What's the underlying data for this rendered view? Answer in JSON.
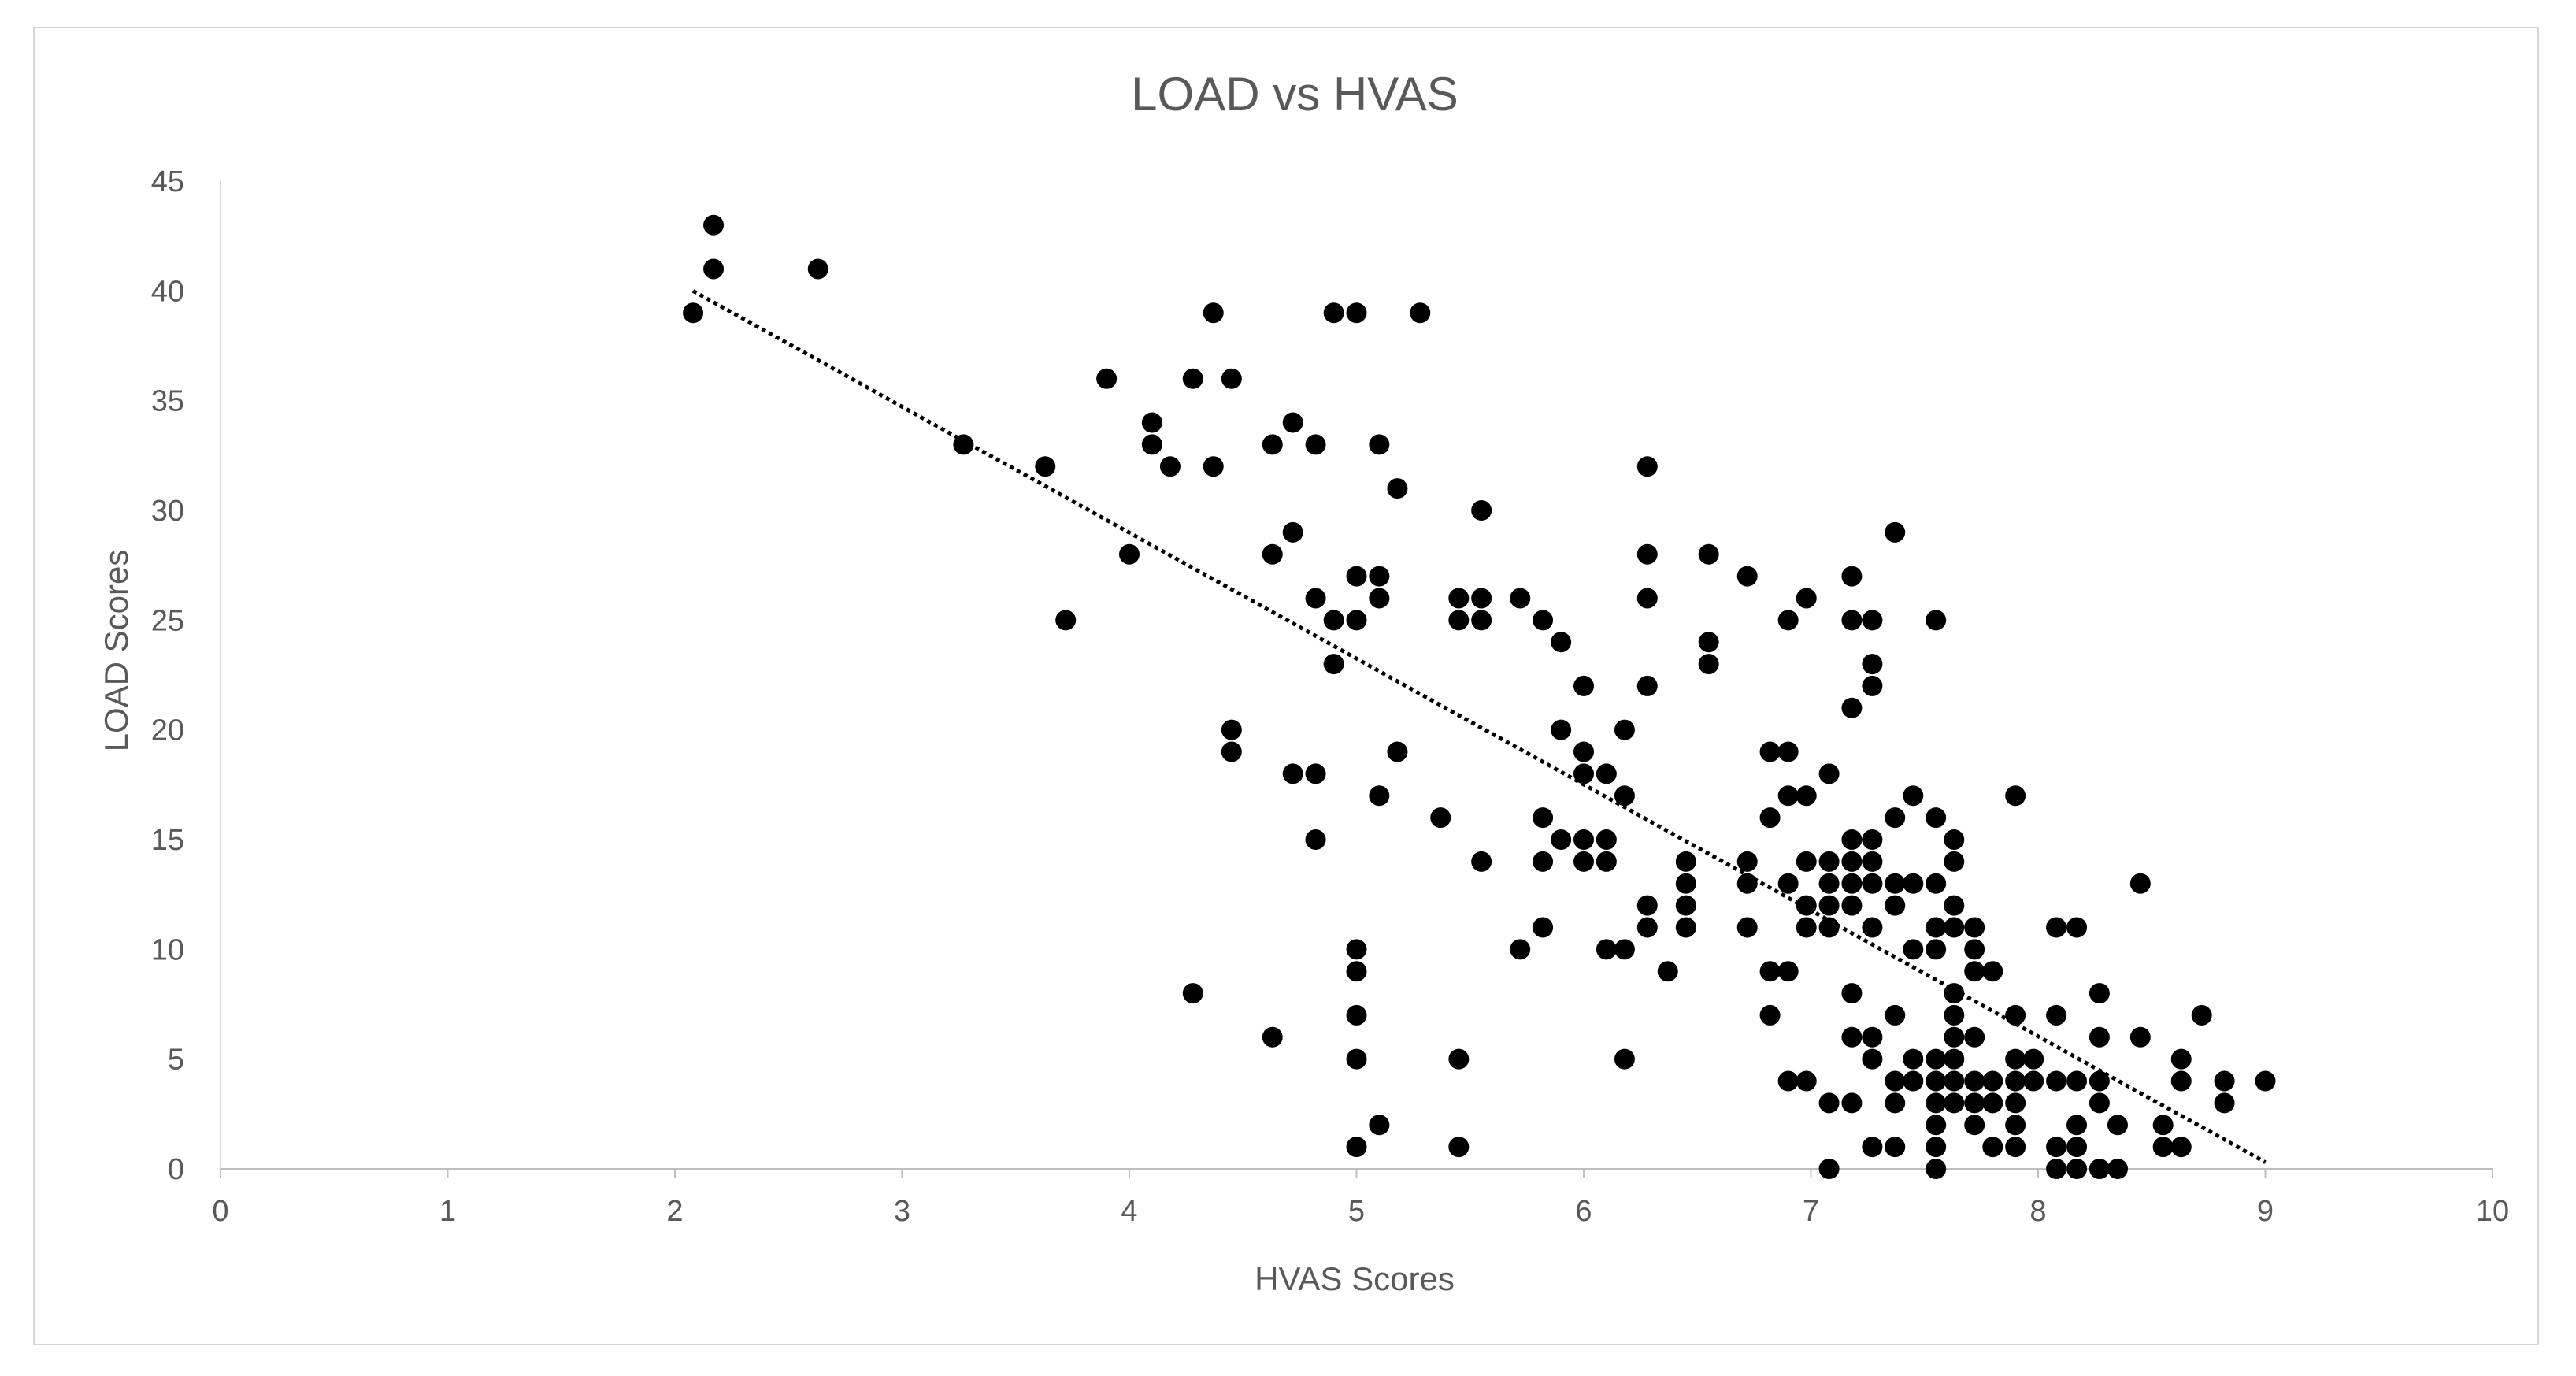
{
  "chart_data": {
    "type": "scatter",
    "title": "LOAD vs HVAS",
    "xlabel": "HVAS Scores",
    "ylabel": "LOAD Scores",
    "xlim": [
      0,
      10
    ],
    "ylim": [
      0,
      45
    ],
    "xticks": [
      0,
      1,
      2,
      3,
      4,
      5,
      6,
      7,
      8,
      9,
      10
    ],
    "yticks": [
      0,
      5,
      10,
      15,
      20,
      25,
      30,
      35,
      40,
      45
    ],
    "grid": false,
    "legend": "none",
    "marker_color": "#000000",
    "trendline": {
      "style": "dotted",
      "color": "#000000",
      "x": [
        2.08,
        9.0
      ],
      "y": [
        40.0,
        0.3
      ]
    },
    "points": [
      [
        2.08,
        39
      ],
      [
        2.17,
        43
      ],
      [
        2.17,
        41
      ],
      [
        2.63,
        41
      ],
      [
        3.27,
        33
      ],
      [
        3.63,
        32
      ],
      [
        3.72,
        25
      ],
      [
        3.9,
        36
      ],
      [
        4.0,
        28
      ],
      [
        4.1,
        34
      ],
      [
        4.1,
        33
      ],
      [
        4.18,
        32
      ],
      [
        4.28,
        36
      ],
      [
        4.37,
        39
      ],
      [
        4.37,
        32
      ],
      [
        4.45,
        36
      ],
      [
        4.45,
        20
      ],
      [
        4.45,
        19
      ],
      [
        4.28,
        8
      ],
      [
        4.63,
        33
      ],
      [
        4.63,
        28
      ],
      [
        4.63,
        6
      ],
      [
        4.72,
        34
      ],
      [
        4.72,
        29
      ],
      [
        4.72,
        18
      ],
      [
        4.82,
        33
      ],
      [
        4.82,
        26
      ],
      [
        4.82,
        18
      ],
      [
        4.82,
        15
      ],
      [
        4.9,
        39
      ],
      [
        4.9,
        25
      ],
      [
        4.9,
        23
      ],
      [
        5.0,
        39
      ],
      [
        5.0,
        27
      ],
      [
        5.0,
        25
      ],
      [
        5.0,
        10
      ],
      [
        5.0,
        9
      ],
      [
        5.0,
        7
      ],
      [
        5.0,
        5
      ],
      [
        5.0,
        1
      ],
      [
        5.1,
        33
      ],
      [
        5.1,
        27
      ],
      [
        5.1,
        26
      ],
      [
        5.1,
        17
      ],
      [
        5.1,
        2
      ],
      [
        5.18,
        31
      ],
      [
        5.18,
        19
      ],
      [
        5.28,
        39
      ],
      [
        5.37,
        16
      ],
      [
        5.45,
        26
      ],
      [
        5.45,
        25
      ],
      [
        5.45,
        5
      ],
      [
        5.45,
        1
      ],
      [
        5.55,
        30
      ],
      [
        5.55,
        26
      ],
      [
        5.55,
        25
      ],
      [
        5.55,
        14
      ],
      [
        5.72,
        26
      ],
      [
        5.72,
        10
      ],
      [
        5.82,
        25
      ],
      [
        5.82,
        16
      ],
      [
        5.82,
        14
      ],
      [
        5.82,
        11
      ],
      [
        5.9,
        24
      ],
      [
        5.9,
        20
      ],
      [
        5.9,
        15
      ],
      [
        6.0,
        22
      ],
      [
        6.0,
        19
      ],
      [
        6.0,
        18
      ],
      [
        6.0,
        15
      ],
      [
        6.0,
        14
      ],
      [
        6.1,
        18
      ],
      [
        6.1,
        15
      ],
      [
        6.1,
        14
      ],
      [
        6.1,
        10
      ],
      [
        6.18,
        20
      ],
      [
        6.18,
        17
      ],
      [
        6.18,
        10
      ],
      [
        6.18,
        5
      ],
      [
        6.28,
        32
      ],
      [
        6.28,
        28
      ],
      [
        6.28,
        26
      ],
      [
        6.28,
        22
      ],
      [
        6.28,
        12
      ],
      [
        6.28,
        11
      ],
      [
        6.37,
        9
      ],
      [
        6.45,
        14
      ],
      [
        6.45,
        13
      ],
      [
        6.45,
        12
      ],
      [
        6.45,
        11
      ],
      [
        6.55,
        28
      ],
      [
        6.55,
        24
      ],
      [
        6.55,
        23
      ],
      [
        6.72,
        27
      ],
      [
        6.72,
        14
      ],
      [
        6.72,
        13
      ],
      [
        6.72,
        11
      ],
      [
        6.82,
        19
      ],
      [
        6.82,
        16
      ],
      [
        6.82,
        9
      ],
      [
        6.82,
        7
      ],
      [
        6.9,
        25
      ],
      [
        6.9,
        19
      ],
      [
        6.9,
        17
      ],
      [
        6.9,
        13
      ],
      [
        6.9,
        9
      ],
      [
        6.9,
        4
      ],
      [
        6.98,
        26
      ],
      [
        6.98,
        17
      ],
      [
        6.98,
        14
      ],
      [
        6.98,
        12
      ],
      [
        6.98,
        11
      ],
      [
        6.98,
        4
      ],
      [
        7.08,
        18
      ],
      [
        7.08,
        14
      ],
      [
        7.08,
        13
      ],
      [
        7.08,
        12
      ],
      [
        7.08,
        11
      ],
      [
        7.08,
        3
      ],
      [
        7.08,
        0
      ],
      [
        7.18,
        27
      ],
      [
        7.18,
        25
      ],
      [
        7.18,
        21
      ],
      [
        7.18,
        15
      ],
      [
        7.18,
        14
      ],
      [
        7.18,
        13
      ],
      [
        7.18,
        12
      ],
      [
        7.18,
        8
      ],
      [
        7.18,
        6
      ],
      [
        7.18,
        3
      ],
      [
        7.27,
        25
      ],
      [
        7.27,
        23
      ],
      [
        7.27,
        22
      ],
      [
        7.27,
        15
      ],
      [
        7.27,
        14
      ],
      [
        7.27,
        13
      ],
      [
        7.27,
        11
      ],
      [
        7.27,
        6
      ],
      [
        7.27,
        5
      ],
      [
        7.27,
        1
      ],
      [
        7.37,
        29
      ],
      [
        7.37,
        16
      ],
      [
        7.37,
        13
      ],
      [
        7.37,
        12
      ],
      [
        7.37,
        7
      ],
      [
        7.37,
        4
      ],
      [
        7.37,
        3
      ],
      [
        7.37,
        1
      ],
      [
        7.45,
        17
      ],
      [
        7.45,
        13
      ],
      [
        7.45,
        10
      ],
      [
        7.45,
        5
      ],
      [
        7.45,
        4
      ],
      [
        7.55,
        25
      ],
      [
        7.55,
        16
      ],
      [
        7.55,
        13
      ],
      [
        7.55,
        11
      ],
      [
        7.55,
        10
      ],
      [
        7.55,
        5
      ],
      [
        7.55,
        4
      ],
      [
        7.55,
        3
      ],
      [
        7.55,
        2
      ],
      [
        7.55,
        1
      ],
      [
        7.55,
        0
      ],
      [
        7.63,
        15
      ],
      [
        7.63,
        14
      ],
      [
        7.63,
        12
      ],
      [
        7.63,
        11
      ],
      [
        7.63,
        8
      ],
      [
        7.63,
        7
      ],
      [
        7.63,
        6
      ],
      [
        7.63,
        5
      ],
      [
        7.63,
        4
      ],
      [
        7.63,
        3
      ],
      [
        7.72,
        11
      ],
      [
        7.72,
        10
      ],
      [
        7.72,
        9
      ],
      [
        7.72,
        6
      ],
      [
        7.72,
        4
      ],
      [
        7.72,
        3
      ],
      [
        7.72,
        2
      ],
      [
        7.8,
        9
      ],
      [
        7.8,
        4
      ],
      [
        7.8,
        3
      ],
      [
        7.8,
        1
      ],
      [
        7.9,
        17
      ],
      [
        7.9,
        7
      ],
      [
        7.9,
        5
      ],
      [
        7.9,
        4
      ],
      [
        7.9,
        3
      ],
      [
        7.9,
        2
      ],
      [
        7.9,
        1
      ],
      [
        7.98,
        5
      ],
      [
        7.98,
        4
      ],
      [
        8.08,
        11
      ],
      [
        8.08,
        7
      ],
      [
        8.08,
        4
      ],
      [
        8.08,
        1
      ],
      [
        8.08,
        0
      ],
      [
        8.17,
        11
      ],
      [
        8.17,
        4
      ],
      [
        8.17,
        2
      ],
      [
        8.17,
        1
      ],
      [
        8.17,
        0
      ],
      [
        8.27,
        8
      ],
      [
        8.27,
        6
      ],
      [
        8.27,
        4
      ],
      [
        8.27,
        3
      ],
      [
        8.27,
        0
      ],
      [
        8.35,
        2
      ],
      [
        8.35,
        0
      ],
      [
        8.45,
        13
      ],
      [
        8.45,
        6
      ],
      [
        8.55,
        2
      ],
      [
        8.55,
        1
      ],
      [
        8.63,
        5
      ],
      [
        8.63,
        4
      ],
      [
        8.63,
        1
      ],
      [
        8.72,
        7
      ],
      [
        8.82,
        4
      ],
      [
        8.82,
        3
      ],
      [
        9.0,
        4
      ]
    ]
  }
}
